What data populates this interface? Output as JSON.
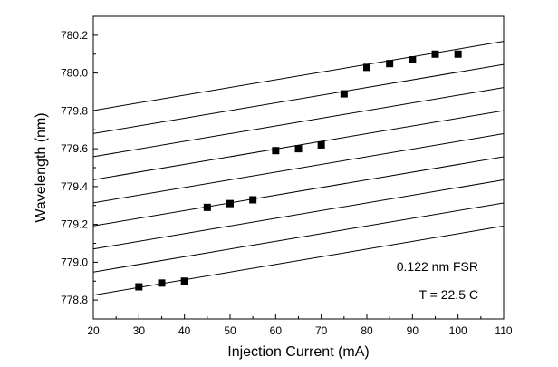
{
  "chart_data": {
    "type": "scatter",
    "xlabel": "Injection Current (mA)",
    "ylabel": "Wavelength (nm)",
    "xlim": [
      20,
      110
    ],
    "ylim": [
      778.7,
      780.3
    ],
    "x_ticks": [
      20,
      30,
      40,
      50,
      60,
      70,
      80,
      90,
      100,
      110
    ],
    "y_ticks": [
      778.8,
      779.0,
      779.2,
      779.4,
      779.6,
      779.8,
      780.0,
      780.2
    ],
    "x_tick_labels": [
      "20",
      "30",
      "40",
      "50",
      "60",
      "70",
      "80",
      "90",
      "100",
      "110"
    ],
    "y_tick_labels": [
      "778.8",
      "779.0",
      "779.2",
      "779.4",
      "779.6",
      "779.8",
      "780.0",
      "780.2"
    ],
    "grid": false,
    "series": [
      {
        "x": [
          30,
          35,
          40,
          45,
          50,
          55,
          60,
          65,
          70,
          75,
          80,
          85,
          90,
          95,
          100
        ],
        "y": [
          778.87,
          778.89,
          778.9,
          779.29,
          779.31,
          779.33,
          779.59,
          779.6,
          779.62,
          779.89,
          780.03,
          780.05,
          780.07,
          780.1,
          780.1
        ],
        "marker": "square",
        "color": "#000000"
      }
    ],
    "mode_lines": {
      "slope_nm_per_mA": 0.00406,
      "spacing_nm": 0.122,
      "intercepts_at_x20": [
        778.826,
        778.948,
        779.07,
        779.192,
        779.314,
        779.436,
        779.558,
        779.68,
        779.802
      ],
      "color": "#000000"
    },
    "annotations": [
      "0.122 nm FSR",
      "T = 22.5 C"
    ]
  }
}
